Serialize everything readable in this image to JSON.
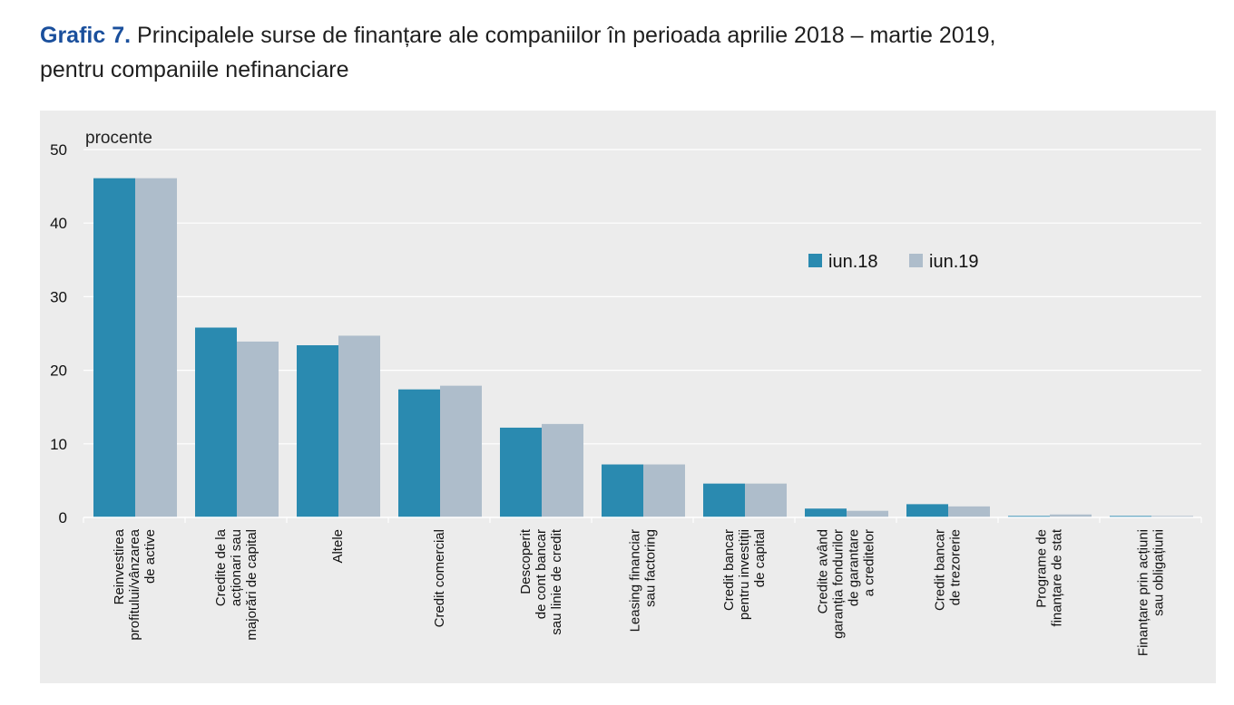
{
  "title": {
    "prefix": "Grafic 7.",
    "line1": "Principalele surse de finanțare ale companiilor în perioada aprilie 2018 – martie 2019,",
    "line2": "pentru companiile nefinanciare"
  },
  "colors": {
    "series1": "#2a8ab0",
    "series2": "#aebdcb",
    "panel": "#ececec",
    "grid": "#ffffff",
    "title_accent": "#1a4f9c"
  },
  "chart_data": {
    "type": "bar",
    "unit_label": "procente",
    "ylim": [
      0,
      50
    ],
    "yticks": [
      "0",
      "10",
      "20",
      "30",
      "40",
      "50"
    ],
    "grid": true,
    "legend_position": "top-right",
    "categories": [
      [
        "Reinvestirea",
        "profitului/vânzarea",
        "de active"
      ],
      [
        "Credite de la",
        "acționari sau",
        "majorări de capital"
      ],
      [
        "Altele"
      ],
      [
        "Credit comercial"
      ],
      [
        "Descoperit",
        "de cont bancar",
        "sau linie de credit"
      ],
      [
        "Leasing financiar",
        "sau factoring"
      ],
      [
        "Credit bancar",
        "pentru investiții",
        "de capital"
      ],
      [
        "Credite având",
        "garanția fondurilor",
        "de garantare",
        "a creditelor"
      ],
      [
        "Credit bancar",
        "de trezorerie"
      ],
      [
        "Programe de",
        "finanțare de stat"
      ],
      [
        "Finanțare prin acțiuni",
        "sau obligațiuni"
      ]
    ],
    "series": [
      {
        "name": "iun.18",
        "values": [
          46.1,
          25.8,
          23.4,
          17.4,
          12.2,
          7.2,
          4.6,
          1.2,
          1.8,
          0.2,
          0.2
        ]
      },
      {
        "name": "iun.19",
        "values": [
          46.1,
          23.9,
          24.7,
          17.9,
          12.7,
          7.2,
          4.6,
          0.9,
          1.5,
          0.4,
          0.2
        ]
      }
    ]
  }
}
